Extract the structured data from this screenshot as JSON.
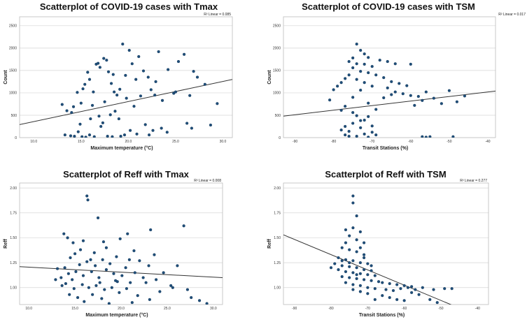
{
  "colors": {
    "point": "#1f4e79",
    "fit_line": "#333333",
    "grid": "#d6d6d6"
  },
  "chart_data": [
    {
      "id": "c1",
      "type": "scatter",
      "title": "Scatterplot of COVID-19 cases with Tmax",
      "xlabel": "Maximum temperature (°C)",
      "ylabel": "Count",
      "xlim": [
        8.5,
        31.0
      ],
      "ylim": [
        0,
        2700
      ],
      "xticks": [
        10,
        15,
        20,
        25,
        30
      ],
      "xtick_labels": [
        "10.0",
        "15.0",
        "20.0",
        "25.0",
        "30.0"
      ],
      "yticks": [
        0,
        500,
        1000,
        1500,
        2000,
        2500
      ],
      "ytick_labels": [
        "0",
        "500",
        "1000",
        "1500",
        "2000",
        "2500"
      ],
      "r2_label": "R² Linear = 0.085",
      "fit_line": [
        [
          8.5,
          290
        ],
        [
          31.0,
          1300
        ]
      ],
      "points": [
        [
          13.0,
          740
        ],
        [
          13.5,
          600
        ],
        [
          14.0,
          560
        ],
        [
          14.2,
          690
        ],
        [
          14.6,
          1010
        ],
        [
          15.0,
          770
        ],
        [
          15.4,
          1190
        ],
        [
          15.7,
          1460
        ],
        [
          15.9,
          1300
        ],
        [
          16.3,
          1020
        ],
        [
          16.6,
          1640
        ],
        [
          16.8,
          1660
        ],
        [
          17.0,
          1570
        ],
        [
          17.4,
          1770
        ],
        [
          17.7,
          1730
        ],
        [
          17.9,
          1470
        ],
        [
          18.2,
          1210
        ],
        [
          18.5,
          1020
        ],
        [
          18.8,
          950
        ],
        [
          19.1,
          1080
        ],
        [
          19.4,
          2090
        ],
        [
          19.7,
          1390
        ],
        [
          20.1,
          1950
        ],
        [
          20.4,
          1650
        ],
        [
          20.8,
          1300
        ],
        [
          21.1,
          1810
        ],
        [
          21.6,
          1490
        ],
        [
          22.1,
          1350
        ],
        [
          22.4,
          1070
        ],
        [
          22.8,
          950
        ],
        [
          23.2,
          1920
        ],
        [
          23.6,
          830
        ],
        [
          24.2,
          1520
        ],
        [
          24.8,
          990
        ],
        [
          25.3,
          1700
        ],
        [
          25.9,
          1860
        ],
        [
          26.5,
          940
        ],
        [
          26.9,
          1480
        ],
        [
          27.3,
          1350
        ],
        [
          28.1,
          1190
        ],
        [
          28.7,
          280
        ],
        [
          29.4,
          760
        ],
        [
          15.2,
          1090
        ],
        [
          16.2,
          720
        ],
        [
          17.5,
          800
        ],
        [
          18.6,
          590
        ],
        [
          19.8,
          880
        ],
        [
          20.6,
          700
        ],
        [
          21.3,
          930
        ],
        [
          16.9,
          480
        ],
        [
          13.3,
          60
        ],
        [
          13.9,
          40
        ],
        [
          14.3,
          30
        ],
        [
          14.7,
          130
        ],
        [
          15.1,
          20
        ],
        [
          15.5,
          10
        ],
        [
          15.9,
          60
        ],
        [
          16.4,
          20
        ],
        [
          17.1,
          250
        ],
        [
          17.8,
          30
        ],
        [
          18.3,
          20
        ],
        [
          19.2,
          30
        ],
        [
          19.6,
          60
        ],
        [
          20.2,
          160
        ],
        [
          20.9,
          80
        ],
        [
          22.2,
          60
        ],
        [
          22.6,
          160
        ],
        [
          23.5,
          210
        ],
        [
          26.2,
          320
        ],
        [
          26.7,
          210
        ],
        [
          14.9,
          300
        ],
        [
          16.0,
          420
        ],
        [
          17.3,
          330
        ],
        [
          18.1,
          510
        ],
        [
          19.0,
          420
        ],
        [
          21.8,
          290
        ],
        [
          24.1,
          120
        ],
        [
          25.0,
          1020
        ],
        [
          22.9,
          1250
        ],
        [
          18.4,
          1410
        ]
      ]
    },
    {
      "id": "c2",
      "type": "scatter",
      "title": "Scatterplot of COVID-19 cases with TSM",
      "xlabel": "Transit Stations (%)",
      "ylabel": "Count",
      "xlim": [
        -93,
        -38
      ],
      "ylim": [
        0,
        2700
      ],
      "xticks": [
        -90,
        -80,
        -70,
        -60,
        -50,
        -40
      ],
      "xtick_labels": [
        "-90",
        "-80",
        "-70",
        "-60",
        "-50",
        "-40"
      ],
      "yticks": [
        0,
        500,
        1000,
        1500,
        2000,
        2500
      ],
      "ytick_labels": [
        "0",
        "500",
        "1000",
        "1500",
        "2000",
        "2500"
      ],
      "r2_label": "R² Linear = 0.017",
      "fit_line": [
        [
          -93,
          480
        ],
        [
          -38,
          1040
        ]
      ],
      "points": [
        [
          -74,
          2090
        ],
        [
          -73,
          1950
        ],
        [
          -72,
          1870
        ],
        [
          -71,
          1790
        ],
        [
          -75,
          1780
        ],
        [
          -76,
          1700
        ],
        [
          -74,
          1650
        ],
        [
          -72,
          1640
        ],
        [
          -70,
          1590
        ],
        [
          -68,
          1730
        ],
        [
          -66,
          1700
        ],
        [
          -64,
          1650
        ],
        [
          -75,
          1560
        ],
        [
          -73,
          1480
        ],
        [
          -71,
          1450
        ],
        [
          -69,
          1400
        ],
        [
          -67,
          1340
        ],
        [
          -65,
          1250
        ],
        [
          -63,
          1210
        ],
        [
          -61,
          1160
        ],
        [
          -76,
          1400
        ],
        [
          -77,
          1320
        ],
        [
          -78,
          1230
        ],
        [
          -79,
          1150
        ],
        [
          -74,
          1300
        ],
        [
          -72,
          1230
        ],
        [
          -70,
          1150
        ],
        [
          -66,
          1110
        ],
        [
          -64,
          1020
        ],
        [
          -62,
          980
        ],
        [
          -60,
          940
        ],
        [
          -58,
          920
        ],
        [
          -56,
          1020
        ],
        [
          -54,
          880
        ],
        [
          -52,
          760
        ],
        [
          -50,
          1050
        ],
        [
          -48,
          800
        ],
        [
          -46,
          930
        ],
        [
          -57,
          830
        ],
        [
          -59,
          720
        ],
        [
          -81,
          840
        ],
        [
          -80,
          1070
        ],
        [
          -78,
          610
        ],
        [
          -77,
          700
        ],
        [
          -75,
          900
        ],
        [
          -73,
          1060
        ],
        [
          -71,
          770
        ],
        [
          -69,
          630
        ],
        [
          -67,
          890
        ],
        [
          -65,
          960
        ],
        [
          -60,
          1640
        ],
        [
          -78,
          170
        ],
        [
          -77,
          60
        ],
        [
          -76,
          140
        ],
        [
          -75,
          320
        ],
        [
          -74,
          490
        ],
        [
          -74,
          30
        ],
        [
          -73,
          220
        ],
        [
          -72,
          390
        ],
        [
          -72,
          80
        ],
        [
          -71,
          470
        ],
        [
          -71,
          10
        ],
        [
          -70,
          260
        ],
        [
          -70,
          120
        ],
        [
          -69,
          60
        ],
        [
          -73,
          380
        ],
        [
          -75,
          560
        ],
        [
          -76,
          30
        ],
        [
          -77,
          250
        ],
        [
          -57,
          20
        ],
        [
          -56,
          10
        ],
        [
          -55,
          20
        ],
        [
          -49,
          20
        ]
      ]
    },
    {
      "id": "c3",
      "type": "scatter",
      "title": "Scatterplot of Reff with Tmax",
      "xlabel": "Maximum temperature (°C)",
      "ylabel": "Reff",
      "xlim": [
        9.0,
        31.0
      ],
      "ylim": [
        0.83,
        2.05
      ],
      "xticks": [
        10,
        15,
        20,
        25,
        30
      ],
      "xtick_labels": [
        "10.0",
        "15.0",
        "20.0",
        "25.0",
        "30.0"
      ],
      "yticks": [
        1.0,
        1.25,
        1.5,
        1.75,
        2.0
      ],
      "ytick_labels": [
        "1.00",
        "1.25",
        "1.50",
        "1.75",
        "2.00"
      ],
      "r2_label": "R² Linear = 0.008",
      "fit_line": [
        [
          9.0,
          1.21
        ],
        [
          31.0,
          1.1
        ]
      ],
      "points": [
        [
          16.3,
          1.92
        ],
        [
          16.4,
          1.88
        ],
        [
          17.5,
          1.7
        ],
        [
          13.8,
          1.54
        ],
        [
          14.2,
          1.5
        ],
        [
          14.8,
          1.45
        ],
        [
          15.9,
          1.47
        ],
        [
          18.1,
          1.46
        ],
        [
          19.9,
          1.49
        ],
        [
          23.2,
          1.58
        ],
        [
          26.8,
          1.62
        ],
        [
          20.7,
          1.54
        ],
        [
          15.6,
          1.38
        ],
        [
          17.1,
          1.35
        ],
        [
          18.4,
          1.4
        ],
        [
          19.5,
          1.31
        ],
        [
          21.4,
          1.37
        ],
        [
          23.6,
          1.33
        ],
        [
          14.5,
          1.3
        ],
        [
          16.7,
          1.28
        ],
        [
          13.1,
          1.19
        ],
        [
          13.5,
          1.1
        ],
        [
          13.9,
          1.2
        ],
        [
          14.3,
          1.14
        ],
        [
          14.7,
          1.08
        ],
        [
          15.1,
          1.16
        ],
        [
          15.5,
          1.23
        ],
        [
          15.9,
          1.12
        ],
        [
          16.3,
          1.26
        ],
        [
          16.8,
          1.16
        ],
        [
          17.2,
          1.22
        ],
        [
          17.6,
          1.1
        ],
        [
          18.0,
          1.28
        ],
        [
          18.4,
          1.18
        ],
        [
          18.8,
          1.24
        ],
        [
          19.2,
          1.14
        ],
        [
          19.6,
          1.06
        ],
        [
          20.1,
          1.12
        ],
        [
          20.5,
          1.2
        ],
        [
          21.0,
          1.05
        ],
        [
          21.5,
          1.15
        ],
        [
          22.0,
          1.27
        ],
        [
          22.4,
          1.1
        ],
        [
          23.0,
          1.22
        ],
        [
          23.8,
          1.08
        ],
        [
          24.6,
          1.15
        ],
        [
          25.4,
          1.02
        ],
        [
          26.1,
          1.22
        ],
        [
          12.9,
          1.08
        ],
        [
          14.0,
          1.04
        ],
        [
          14.9,
          0.99
        ],
        [
          15.8,
          1.03
        ],
        [
          16.5,
          1.0
        ],
        [
          17.3,
          1.02
        ],
        [
          18.2,
          0.98
        ],
        [
          19.0,
          1.0
        ],
        [
          19.8,
          0.95
        ],
        [
          20.6,
          0.99
        ],
        [
          21.8,
          0.92
        ],
        [
          23.1,
          0.88
        ],
        [
          24.2,
          0.96
        ],
        [
          25.6,
          1.0
        ],
        [
          27.2,
          0.98
        ],
        [
          27.6,
          0.9
        ],
        [
          28.5,
          0.87
        ],
        [
          29.3,
          0.84
        ],
        [
          16.0,
          0.86
        ],
        [
          17.9,
          0.89
        ],
        [
          18.7,
          0.84
        ],
        [
          21.2,
          0.85
        ],
        [
          14.4,
          0.93
        ],
        [
          15.3,
          0.9
        ],
        [
          16.9,
          0.93
        ],
        [
          19.4,
          1.07
        ],
        [
          20.9,
          1.28
        ],
        [
          22.7,
          1.05
        ],
        [
          13.6,
          1.02
        ],
        [
          15.0,
          1.34
        ],
        [
          17.7,
          1.05
        ]
      ]
    },
    {
      "id": "c4",
      "type": "scatter",
      "title": "Scatterplot of Reff with TSM",
      "xlabel": "Transit Stations (%)",
      "ylabel": "Reff",
      "xlim": [
        -93,
        -37
      ],
      "ylim": [
        0.83,
        2.05
      ],
      "xticks": [
        -90,
        -80,
        -70,
        -60,
        -50,
        -40
      ],
      "xtick_labels": [
        "-90",
        "-80",
        "-70",
        "-60",
        "-50",
        "-40"
      ],
      "yticks": [
        1.0,
        1.25,
        1.5,
        1.75,
        2.0
      ],
      "ytick_labels": [
        "1.00",
        "1.25",
        "1.50",
        "1.75",
        "2.00"
      ],
      "r2_label": "R² Linear = 0.277",
      "fit_line": [
        [
          -93,
          1.53
        ],
        [
          -46,
          0.81
        ]
      ],
      "points": [
        [
          -74,
          1.92
        ],
        [
          -74,
          1.85
        ],
        [
          -73,
          1.72
        ],
        [
          -76,
          1.58
        ],
        [
          -74,
          1.6
        ],
        [
          -72,
          1.56
        ],
        [
          -75,
          1.52
        ],
        [
          -73,
          1.48
        ],
        [
          -71,
          1.45
        ],
        [
          -76,
          1.45
        ],
        [
          -77,
          1.4
        ],
        [
          -75,
          1.38
        ],
        [
          -73,
          1.36
        ],
        [
          -71,
          1.33
        ],
        [
          -78,
          1.3
        ],
        [
          -76,
          1.28
        ],
        [
          -74,
          1.27
        ],
        [
          -72,
          1.25
        ],
        [
          -70,
          1.24
        ],
        [
          -79,
          1.24
        ],
        [
          -77,
          1.22
        ],
        [
          -75,
          1.21
        ],
        [
          -73,
          1.2
        ],
        [
          -71,
          1.18
        ],
        [
          -69,
          1.17
        ],
        [
          -80,
          1.2
        ],
        [
          -78,
          1.18
        ],
        [
          -76,
          1.16
        ],
        [
          -74,
          1.15
        ],
        [
          -72,
          1.14
        ],
        [
          -70,
          1.13
        ],
        [
          -68,
          1.12
        ],
        [
          -77,
          1.11
        ],
        [
          -75,
          1.1
        ],
        [
          -73,
          1.09
        ],
        [
          -71,
          1.08
        ],
        [
          -69,
          1.07
        ],
        [
          -67,
          1.06
        ],
        [
          -66,
          1.05
        ],
        [
          -64,
          1.04
        ],
        [
          -62,
          1.03
        ],
        [
          -60,
          1.02
        ],
        [
          -58,
          1.01
        ],
        [
          -76,
          1.05
        ],
        [
          -74,
          1.03
        ],
        [
          -72,
          1.02
        ],
        [
          -70,
          1.0
        ],
        [
          -68,
          0.99
        ],
        [
          -65,
          0.98
        ],
        [
          -63,
          0.97
        ],
        [
          -61,
          0.99
        ],
        [
          -59,
          1.0
        ],
        [
          -57,
          0.98
        ],
        [
          -55,
          1.0
        ],
        [
          -52,
          0.98
        ],
        [
          -49,
          0.99
        ],
        [
          -47,
          0.99
        ],
        [
          -66,
          0.92
        ],
        [
          -64,
          0.9
        ],
        [
          -62,
          0.88
        ],
        [
          -60,
          0.87
        ],
        [
          -58,
          0.95
        ],
        [
          -56,
          0.93
        ],
        [
          -53,
          0.88
        ],
        [
          -51,
          0.85
        ],
        [
          -70,
          0.94
        ],
        [
          -72,
          0.96
        ],
        [
          -74,
          0.98
        ],
        [
          -68,
          0.88
        ],
        [
          -71,
          1.3
        ],
        [
          -73,
          1.13
        ],
        [
          -75,
          1.25
        ],
        [
          -69,
          1.22
        ],
        [
          -77,
          1.27
        ],
        [
          -72,
          1.4
        ]
      ]
    }
  ]
}
